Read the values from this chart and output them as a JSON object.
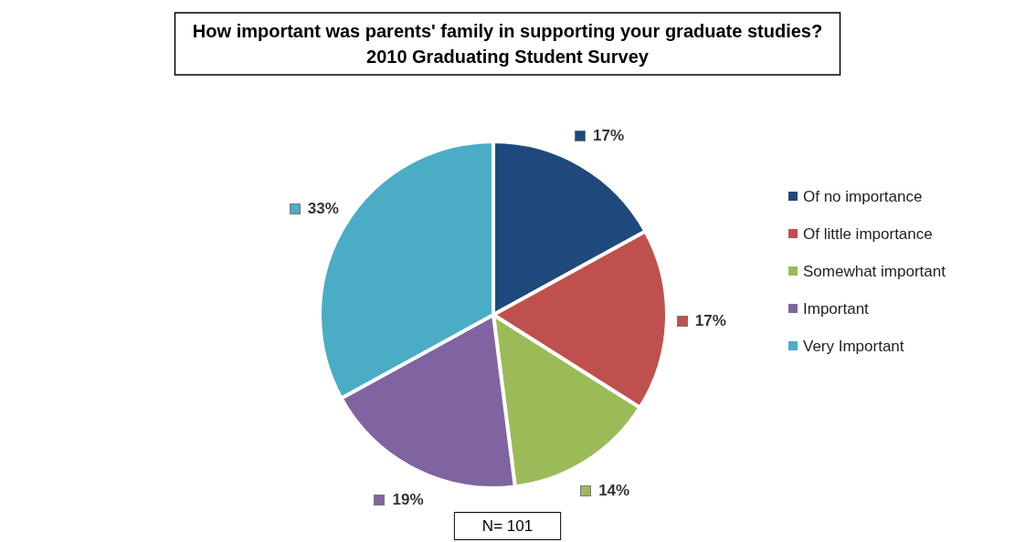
{
  "chart_data": {
    "type": "pie",
    "title": "How important was parents' family in supporting your graduate studies?",
    "subtitle": "2010 Graduating Student Survey",
    "categories": [
      "Of no importance",
      "Of little importance",
      "Somewhat important",
      "Important",
      "Very Important"
    ],
    "values": [
      17,
      17,
      14,
      19,
      33
    ],
    "value_labels": [
      "17%",
      "17%",
      "14%",
      "19%",
      "33%"
    ],
    "colors": [
      "#1f497d",
      "#c0504d",
      "#9bbb59",
      "#8064a2",
      "#4bacc6"
    ],
    "legend": "right",
    "annotations": [
      "N= 101"
    ]
  }
}
